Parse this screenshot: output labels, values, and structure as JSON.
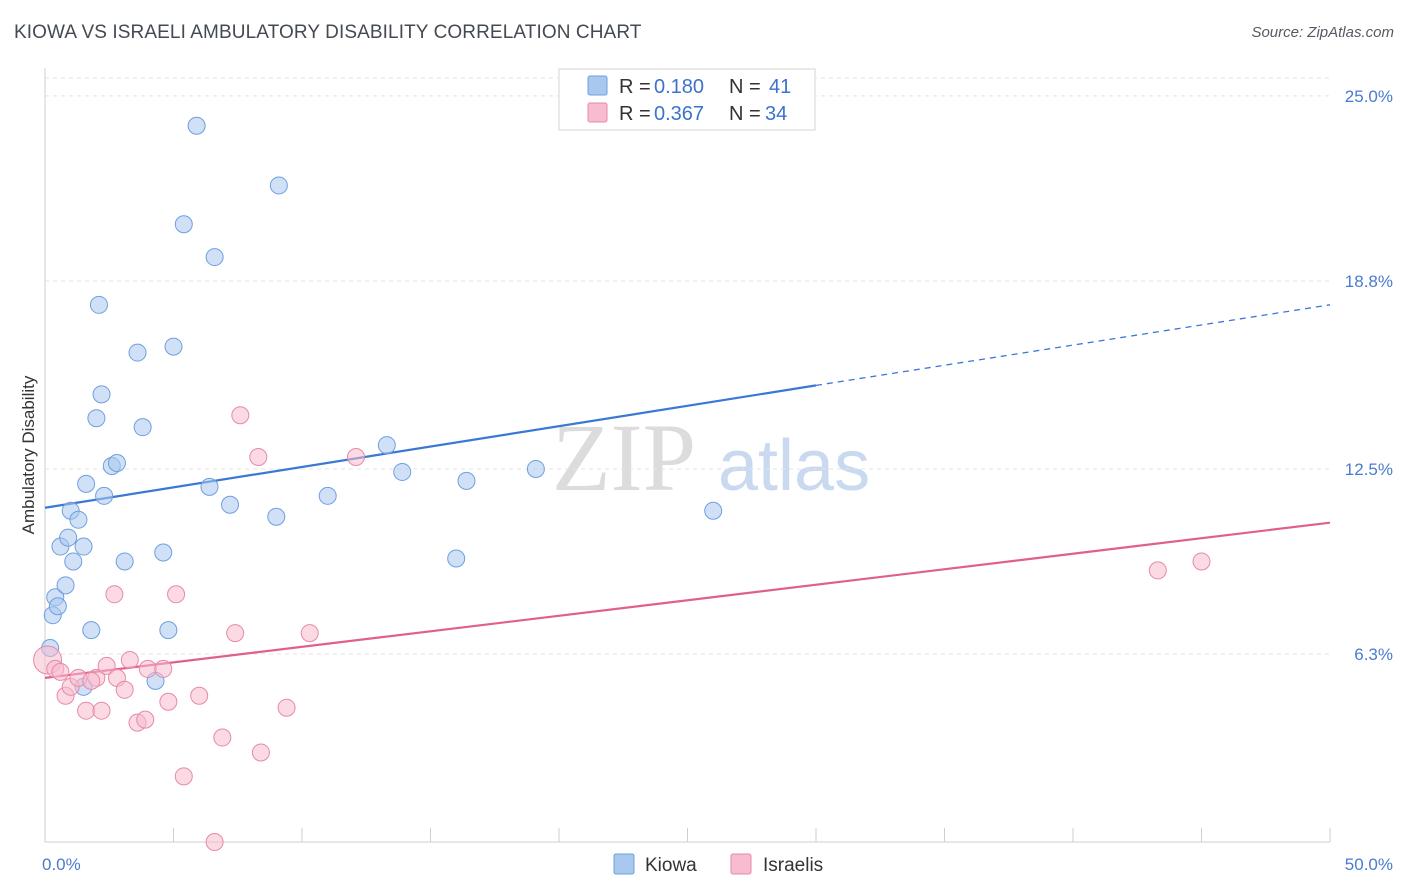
{
  "title": "KIOWA VS ISRAELI AMBULATORY DISABILITY CORRELATION CHART",
  "source": "Source: ZipAtlas.com",
  "watermark": {
    "part1": "ZIP",
    "part2": "atlas"
  },
  "legend": {
    "rows": [
      {
        "r_label": "R =",
        "r_value": "0.180",
        "n_label": "N =",
        "n_value": "41",
        "color": "#a9c8f0",
        "stroke": "#6f9fde"
      },
      {
        "r_label": "R =",
        "r_value": "0.367",
        "n_label": "N =",
        "n_value": "34",
        "color": "#f7bccd",
        "stroke": "#e68aa8"
      }
    ]
  },
  "bottom_legend": [
    {
      "label": "Kiowa",
      "color": "#a9c8f0",
      "stroke": "#6f9fde"
    },
    {
      "label": "Israelis",
      "color": "#f7bccd",
      "stroke": "#e68aa8"
    }
  ],
  "chart_data": {
    "type": "scatter",
    "title": "KIOWA VS ISRAELI AMBULATORY DISABILITY CORRELATION CHART",
    "xlabel": "",
    "ylabel": "Ambulatory Disability",
    "xlim": [
      0,
      50
    ],
    "ylim": [
      0,
      25.6
    ],
    "x_tick_labels": [
      {
        "value": 0,
        "label": "0.0%"
      },
      {
        "value": 50,
        "label": "50.0%"
      }
    ],
    "y_tick_labels": [
      {
        "value": 6.3,
        "label": "6.3%"
      },
      {
        "value": 12.5,
        "label": "12.5%"
      },
      {
        "value": 18.8,
        "label": "18.8%"
      },
      {
        "value": 25.0,
        "label": "25.0%"
      }
    ],
    "series": [
      {
        "name": "Kiowa",
        "color": "#a9c8f0",
        "stroke": "#6f9fde",
        "line_color": "#3a78d4",
        "trend": {
          "x0": 0,
          "y0": 11.2,
          "x1": 30,
          "y1": 15.3,
          "dash_x1": 50,
          "dash_y1": 18.0
        },
        "points": [
          [
            0.2,
            6.5
          ],
          [
            0.3,
            7.6
          ],
          [
            0.4,
            8.2
          ],
          [
            0.5,
            7.9
          ],
          [
            0.6,
            9.9
          ],
          [
            0.8,
            8.6
          ],
          [
            0.9,
            10.2
          ],
          [
            1.0,
            11.1
          ],
          [
            1.1,
            9.4
          ],
          [
            1.3,
            10.8
          ],
          [
            1.5,
            9.9
          ],
          [
            1.6,
            12.0
          ],
          [
            1.8,
            7.1
          ],
          [
            2.0,
            14.2
          ],
          [
            2.1,
            18.0
          ],
          [
            2.2,
            15.0
          ],
          [
            2.3,
            11.6
          ],
          [
            2.6,
            12.6
          ],
          [
            2.8,
            12.7
          ],
          [
            3.1,
            9.4
          ],
          [
            3.6,
            16.4
          ],
          [
            3.8,
            13.9
          ],
          [
            4.3,
            5.4
          ],
          [
            4.6,
            9.7
          ],
          [
            4.8,
            7.1
          ],
          [
            5.0,
            16.6
          ],
          [
            5.4,
            20.7
          ],
          [
            5.9,
            24.0
          ],
          [
            6.4,
            11.9
          ],
          [
            6.6,
            19.6
          ],
          [
            7.2,
            11.3
          ],
          [
            9.0,
            10.9
          ],
          [
            9.1,
            22.0
          ],
          [
            11.0,
            11.6
          ],
          [
            13.3,
            13.3
          ],
          [
            13.9,
            12.4
          ],
          [
            16.0,
            9.5
          ],
          [
            16.4,
            12.1
          ],
          [
            19.1,
            12.5
          ],
          [
            26.0,
            11.1
          ],
          [
            1.5,
            5.2
          ]
        ]
      },
      {
        "name": "Israelis",
        "color": "#f7bccd",
        "stroke": "#e68aa8",
        "line_color": "#e0608c",
        "trend": {
          "x0": 0,
          "y0": 5.5,
          "x1": 50,
          "y1": 10.7
        },
        "points": [
          [
            0.1,
            6.1
          ],
          [
            0.4,
            5.8
          ],
          [
            0.6,
            5.7
          ],
          [
            0.8,
            4.9
          ],
          [
            1.0,
            5.2
          ],
          [
            1.3,
            5.5
          ],
          [
            1.6,
            4.4
          ],
          [
            2.0,
            5.5
          ],
          [
            2.2,
            4.4
          ],
          [
            2.4,
            5.9
          ],
          [
            2.7,
            8.3
          ],
          [
            2.8,
            5.5
          ],
          [
            3.1,
            5.1
          ],
          [
            3.3,
            6.1
          ],
          [
            3.6,
            4.0
          ],
          [
            3.9,
            4.1
          ],
          [
            4.0,
            5.8
          ],
          [
            4.6,
            5.8
          ],
          [
            4.8,
            4.7
          ],
          [
            5.1,
            8.3
          ],
          [
            5.4,
            2.2
          ],
          [
            6.0,
            4.9
          ],
          [
            6.6,
            0.0
          ],
          [
            6.9,
            3.5
          ],
          [
            7.4,
            7.0
          ],
          [
            7.6,
            14.3
          ],
          [
            8.3,
            12.9
          ],
          [
            8.4,
            3.0
          ],
          [
            9.4,
            4.5
          ],
          [
            10.3,
            7.0
          ],
          [
            12.1,
            12.9
          ],
          [
            43.3,
            9.1
          ],
          [
            45.0,
            9.4
          ],
          [
            1.8,
            5.4
          ]
        ]
      }
    ]
  }
}
